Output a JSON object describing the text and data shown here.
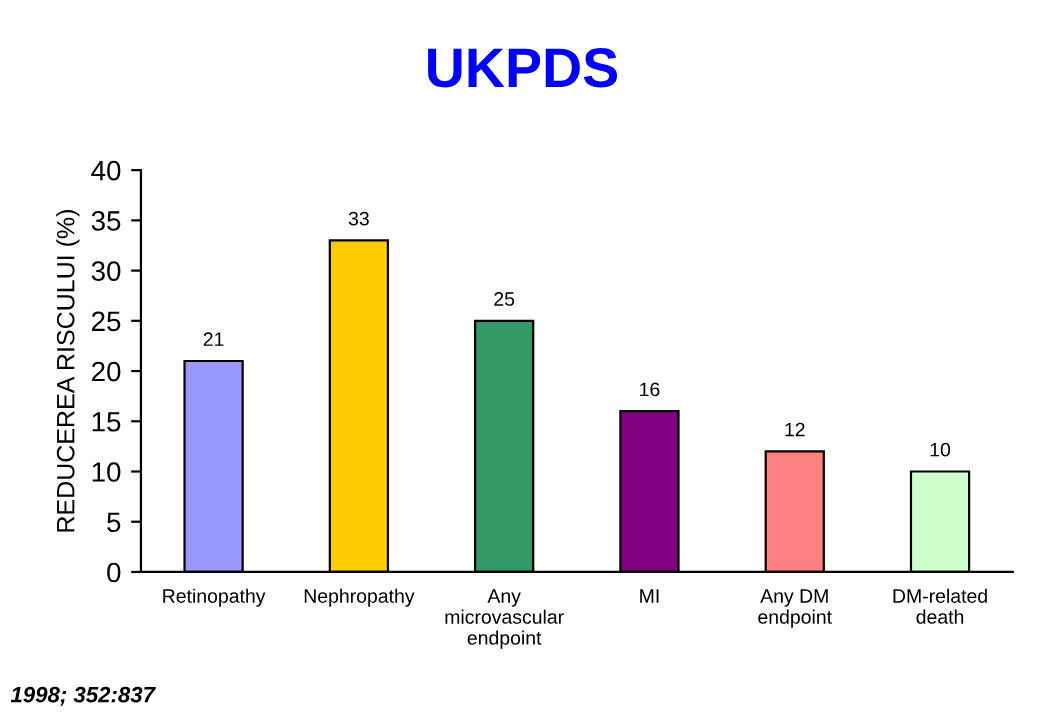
{
  "chart_data": {
    "type": "bar",
    "title": "UKPDS",
    "ylabel": "REDUCEREA RISCULUI (%)",
    "categories": [
      "Retinopathy",
      "Nephropathy",
      "Any\nmicrovascular\nendpoint",
      "MI",
      "Any DM\nendpoint",
      "DM-related\ndeath"
    ],
    "values": [
      21,
      33,
      25,
      16,
      12,
      10
    ],
    "colors": [
      "#9999ff",
      "#ffcc00",
      "#339966",
      "#800080",
      "#ff8080",
      "#ccffcc"
    ],
    "ylim": [
      0,
      40
    ],
    "yticks": [
      0,
      5,
      10,
      15,
      20,
      25,
      30,
      35,
      40
    ],
    "grid": false,
    "data_labels": true,
    "annotations": [
      "1998; 352:837"
    ]
  }
}
